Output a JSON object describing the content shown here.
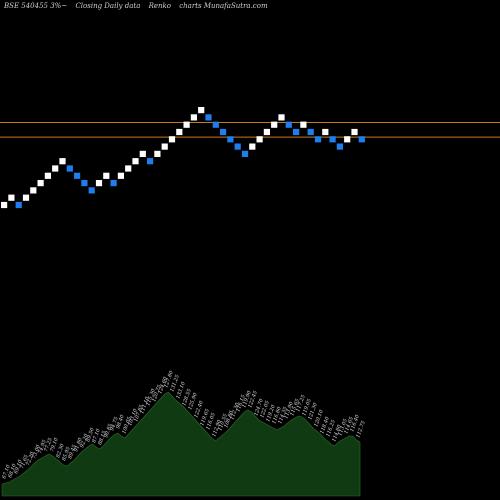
{
  "header": {
    "symbol": "BSE 540455 3%~",
    "subtitle": "Closing Daily data",
    "chart_kind": "Renko",
    "brand": "charts MunafaSutra.com"
  },
  "chart_data": {
    "type": "renko",
    "title": "BSE 540455 3%~ Closing Daily data Renko charts MunafaSutra.com",
    "colors": {
      "up": "#ffffff",
      "down": "#1e7ef0",
      "background": "#000000",
      "volume_area": "#0f3a12",
      "hline": "#c87a1a"
    },
    "bricks": [
      {
        "dir": "up",
        "level": 0
      },
      {
        "dir": "up",
        "level": 1
      },
      {
        "dir": "down",
        "level": 0
      },
      {
        "dir": "up",
        "level": 1
      },
      {
        "dir": "up",
        "level": 2
      },
      {
        "dir": "up",
        "level": 3
      },
      {
        "dir": "up",
        "level": 4
      },
      {
        "dir": "up",
        "level": 5
      },
      {
        "dir": "up",
        "level": 6
      },
      {
        "dir": "down",
        "level": 5
      },
      {
        "dir": "down",
        "level": 4
      },
      {
        "dir": "down",
        "level": 3
      },
      {
        "dir": "down",
        "level": 2
      },
      {
        "dir": "up",
        "level": 3
      },
      {
        "dir": "up",
        "level": 4
      },
      {
        "dir": "down",
        "level": 3
      },
      {
        "dir": "up",
        "level": 4
      },
      {
        "dir": "up",
        "level": 5
      },
      {
        "dir": "up",
        "level": 6
      },
      {
        "dir": "up",
        "level": 7
      },
      {
        "dir": "down",
        "level": 6
      },
      {
        "dir": "up",
        "level": 7
      },
      {
        "dir": "up",
        "level": 8
      },
      {
        "dir": "up",
        "level": 9
      },
      {
        "dir": "up",
        "level": 10
      },
      {
        "dir": "up",
        "level": 11
      },
      {
        "dir": "up",
        "level": 12
      },
      {
        "dir": "up",
        "level": 13
      },
      {
        "dir": "down",
        "level": 12
      },
      {
        "dir": "down",
        "level": 11
      },
      {
        "dir": "down",
        "level": 10
      },
      {
        "dir": "down",
        "level": 9
      },
      {
        "dir": "down",
        "level": 8
      },
      {
        "dir": "down",
        "level": 7
      },
      {
        "dir": "up",
        "level": 8
      },
      {
        "dir": "up",
        "level": 9
      },
      {
        "dir": "up",
        "level": 10
      },
      {
        "dir": "up",
        "level": 11
      },
      {
        "dir": "up",
        "level": 12
      },
      {
        "dir": "down",
        "level": 11
      },
      {
        "dir": "down",
        "level": 10
      },
      {
        "dir": "up",
        "level": 11
      },
      {
        "dir": "down",
        "level": 10
      },
      {
        "dir": "down",
        "level": 9
      },
      {
        "dir": "up",
        "level": 10
      },
      {
        "dir": "down",
        "level": 9
      },
      {
        "dir": "down",
        "level": 8
      },
      {
        "dir": "up",
        "level": 9
      },
      {
        "dir": "up",
        "level": 10
      },
      {
        "dir": "down",
        "level": 9
      }
    ],
    "reference_lines": [
      11.3,
      9.3
    ],
    "volume_area": [
      12,
      13,
      14,
      16,
      18,
      20,
      23,
      26,
      29,
      33,
      36,
      38,
      40,
      42,
      40,
      37,
      34,
      31,
      30,
      33,
      36,
      40,
      44,
      47,
      50,
      52,
      49,
      47,
      50,
      54,
      58,
      61,
      63,
      60,
      58,
      62,
      66,
      70,
      74,
      78,
      82,
      86,
      90,
      94,
      98,
      102,
      104,
      100,
      96,
      93,
      90,
      86,
      82,
      78,
      74,
      70,
      66,
      62,
      58,
      55,
      58,
      61,
      64,
      68,
      72,
      76,
      80,
      84,
      86,
      84,
      80,
      76,
      74,
      72,
      70,
      68,
      66,
      68,
      70,
      73,
      76,
      78,
      80,
      79,
      76,
      72,
      68,
      65,
      62,
      58,
      55,
      52,
      50,
      54,
      56,
      58,
      60,
      60,
      56,
      54
    ],
    "volume_labels": [
      "67.10",
      "68.10",
      "69.10",
      "71.65",
      "72.20",
      "73.00",
      "74.95",
      "77.25",
      "79.10",
      "82.30",
      "85.95",
      "89.45",
      "91.80",
      "92.20",
      "89.50",
      "87.10",
      "88.15",
      "90.85",
      "94.75",
      "98.40",
      "100.05",
      "103.10",
      "107.85",
      "111.10",
      "115.30",
      "120.75",
      "124.60",
      "127.80",
      "131.25",
      "133.10",
      "128.55",
      "125.90",
      "122.40",
      "119.65",
      "116.05",
      "112.90",
      "110.55",
      "108.80",
      "112.30",
      "116.15",
      "119.90",
      "122.45",
      "124.70",
      "122.05",
      "119.20",
      "116.80",
      "114.35",
      "113.90",
      "115.65",
      "117.25",
      "119.05",
      "121.30",
      "120.10",
      "118.40",
      "116.25",
      "114.80",
      "113.05",
      "114.65",
      "116.40",
      "112.75"
    ]
  }
}
